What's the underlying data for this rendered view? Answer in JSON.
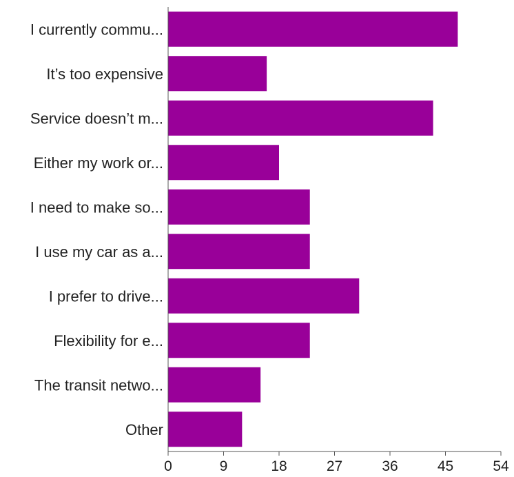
{
  "chart_data": {
    "type": "bar",
    "orientation": "horizontal",
    "categories": [
      "I currently commu...",
      "It’s too expensive",
      "Service doesn’t m...",
      "Either my work or...",
      "I need to make so...",
      "I use my car as a...",
      "I prefer to drive...",
      "Flexibility for e...",
      "The transit netwo...",
      "Other"
    ],
    "values": [
      47,
      16,
      43,
      18,
      23,
      23,
      31,
      23,
      15,
      12
    ],
    "xlim": [
      0,
      54
    ],
    "x_ticks": [
      0,
      9,
      18,
      27,
      36,
      45,
      54
    ],
    "bar_color": "#990099",
    "grid": false,
    "title": "",
    "xlabel": "",
    "ylabel": ""
  }
}
